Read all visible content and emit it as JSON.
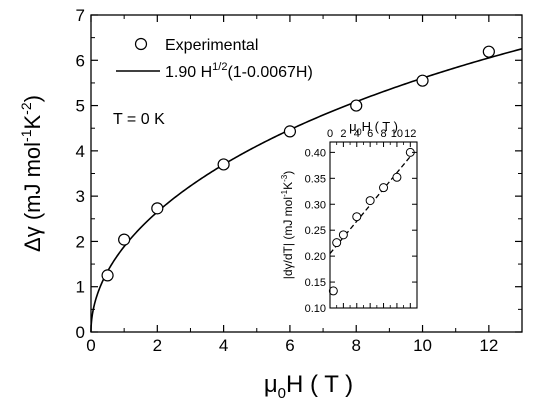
{
  "chart_data": [
    {
      "type": "scatter",
      "xlabel": {
        "main": "μ",
        "sub": "0",
        "rest": "H ( T )"
      },
      "ylabel": {
        "main": "Δγ (mJ mol",
        "sup1": "-1",
        "mid": "K",
        "sup2": "-2",
        "end": ")"
      },
      "xlim": [
        0,
        13
      ],
      "ylim": [
        0,
        7
      ],
      "xticks": [
        "0",
        "2",
        "4",
        "6",
        "8",
        "10",
        "12"
      ],
      "yticks": [
        "0",
        "1",
        "2",
        "3",
        "4",
        "5",
        "6",
        "7"
      ],
      "annotation": "T = 0 K",
      "legend": {
        "position": "top-left",
        "experimental": "Experimental",
        "fit_main": "1.90 H",
        "fit_sup": "1/2",
        "fit_end": "(1-0.0067H)"
      },
      "series": [
        {
          "name": "Experimental",
          "marker": "open-circle",
          "points": [
            [
              0.5,
              1.25
            ],
            [
              1,
              2.04
            ],
            [
              2,
              2.73
            ],
            [
              4,
              3.7
            ],
            [
              6,
              4.43
            ],
            [
              8,
              5.0
            ],
            [
              10,
              5.55
            ],
            [
              12,
              6.19
            ]
          ]
        },
        {
          "name": "1.90 H^1/2(1-0.0067H)",
          "style": "solid-line",
          "fit": {
            "a": 1.9,
            "b": 0.0067,
            "xmin": 0,
            "xmax": 13
          }
        }
      ]
    },
    {
      "type": "scatter",
      "inset": true,
      "xlabel": {
        "main": "μ",
        "sub": "0",
        "rest": "H ( T )"
      },
      "ylabel": {
        "main": "|dγ/dT| (mJ mol",
        "sup1": "-1",
        "mid": "K",
        "sup2": "-3",
        "end": ")"
      },
      "xlim": [
        0,
        13
      ],
      "ylim": [
        0.1,
        0.42
      ],
      "xticks": [
        "0",
        "2",
        "4",
        "6",
        "8",
        "10",
        "12"
      ],
      "yticks": [
        "0.10",
        "0.15",
        "0.20",
        "0.25",
        "0.30",
        "0.35",
        "0.40"
      ],
      "series": [
        {
          "marker": "open-circle",
          "points": [
            [
              0.5,
              0.133
            ],
            [
              1,
              0.226
            ],
            [
              2,
              0.241
            ],
            [
              4,
              0.276
            ],
            [
              6,
              0.307
            ],
            [
              8,
              0.332
            ],
            [
              10,
              0.352
            ],
            [
              12,
              0.4
            ]
          ]
        },
        {
          "style": "dashed-line",
          "line": {
            "x0": 0,
            "y0": 0.205,
            "x1": 12,
            "y1": 0.392
          }
        }
      ]
    }
  ]
}
